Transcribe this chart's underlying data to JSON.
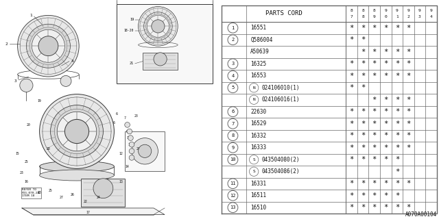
{
  "title": "A070A00104",
  "bg_color": "#ffffff",
  "table_header": "PARTS CORD",
  "year_labels": [
    "8",
    "8",
    "8",
    "9",
    "9",
    "9",
    "9",
    "9"
  ],
  "year_labels2": [
    "7",
    "8",
    "9",
    "0",
    "1",
    "2",
    "3",
    "4"
  ],
  "rows": [
    {
      "item": "1",
      "prefix": "",
      "part": "16551",
      "stars": [
        1,
        1,
        1,
        1,
        1,
        1,
        0,
        0
      ]
    },
    {
      "item": "2",
      "prefix": "",
      "part": "Q586004",
      "stars": [
        1,
        1,
        0,
        0,
        0,
        0,
        0,
        0
      ]
    },
    {
      "item": "2",
      "prefix": "",
      "part": "A50639",
      "stars": [
        0,
        1,
        1,
        1,
        1,
        1,
        0,
        0
      ]
    },
    {
      "item": "3",
      "prefix": "",
      "part": "16325",
      "stars": [
        1,
        1,
        1,
        1,
        1,
        1,
        0,
        0
      ]
    },
    {
      "item": "4",
      "prefix": "",
      "part": "16553",
      "stars": [
        1,
        1,
        1,
        1,
        1,
        1,
        0,
        0
      ]
    },
    {
      "item": "5",
      "prefix": "N",
      "part": "024106010(1)",
      "stars": [
        1,
        1,
        0,
        0,
        0,
        0,
        0,
        0
      ]
    },
    {
      "item": "5",
      "prefix": "N",
      "part": "024106016(1)",
      "stars": [
        0,
        0,
        1,
        1,
        1,
        1,
        0,
        0
      ]
    },
    {
      "item": "6",
      "prefix": "",
      "part": "22630",
      "stars": [
        1,
        1,
        1,
        1,
        1,
        1,
        0,
        0
      ]
    },
    {
      "item": "7",
      "prefix": "",
      "part": "16529",
      "stars": [
        1,
        1,
        1,
        1,
        1,
        1,
        0,
        0
      ]
    },
    {
      "item": "8",
      "prefix": "",
      "part": "16332",
      "stars": [
        1,
        1,
        1,
        1,
        1,
        1,
        0,
        0
      ]
    },
    {
      "item": "9",
      "prefix": "",
      "part": "16333",
      "stars": [
        1,
        1,
        1,
        1,
        1,
        1,
        0,
        0
      ]
    },
    {
      "item": "10",
      "prefix": "S",
      "part": "043504080(2)",
      "stars": [
        1,
        1,
        1,
        1,
        1,
        0,
        0,
        0
      ]
    },
    {
      "item": "10",
      "prefix": "S",
      "part": "043504086(2)",
      "stars": [
        0,
        0,
        0,
        0,
        1,
        0,
        0,
        0
      ]
    },
    {
      "item": "11",
      "prefix": "",
      "part": "16331",
      "stars": [
        1,
        1,
        1,
        1,
        1,
        1,
        0,
        0
      ]
    },
    {
      "item": "12",
      "prefix": "",
      "part": "16511",
      "stars": [
        1,
        1,
        1,
        1,
        1,
        0,
        0,
        0
      ]
    },
    {
      "item": "13",
      "prefix": "",
      "part": "16510",
      "stars": [
        1,
        1,
        1,
        1,
        1,
        1,
        0,
        0
      ]
    }
  ],
  "lc": "#333333",
  "tc": "#111111",
  "tlc": "#666666"
}
